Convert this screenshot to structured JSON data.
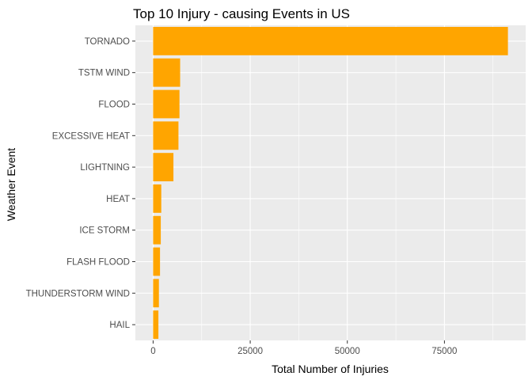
{
  "chart_data": {
    "type": "bar",
    "orientation": "horizontal",
    "title": "Top 10 Injury - causing Events in US",
    "xlabel": "Total Number of Injuries",
    "ylabel": "Weather Event",
    "categories": [
      "TORNADO",
      "TSTM WIND",
      "FLOOD",
      "EXCESSIVE HEAT",
      "LIGHTNING",
      "HEAT",
      "ICE STORM",
      "FLASH FLOOD",
      "THUNDERSTORM WIND",
      "HAIL"
    ],
    "values": [
      91346,
      6957,
      6789,
      6525,
      5230,
      2100,
      1975,
      1777,
      1488,
      1361
    ],
    "xlim": [
      -4567,
      95913
    ],
    "x_ticks": [
      0,
      25000,
      50000,
      75000
    ],
    "x_tick_labels": [
      "0",
      "25000",
      "50000",
      "75000"
    ],
    "bar_color": "#FFA500",
    "panel_background": "#EBEBEB",
    "grid_color": "#FFFFFF",
    "grid": true,
    "legend": "none"
  }
}
